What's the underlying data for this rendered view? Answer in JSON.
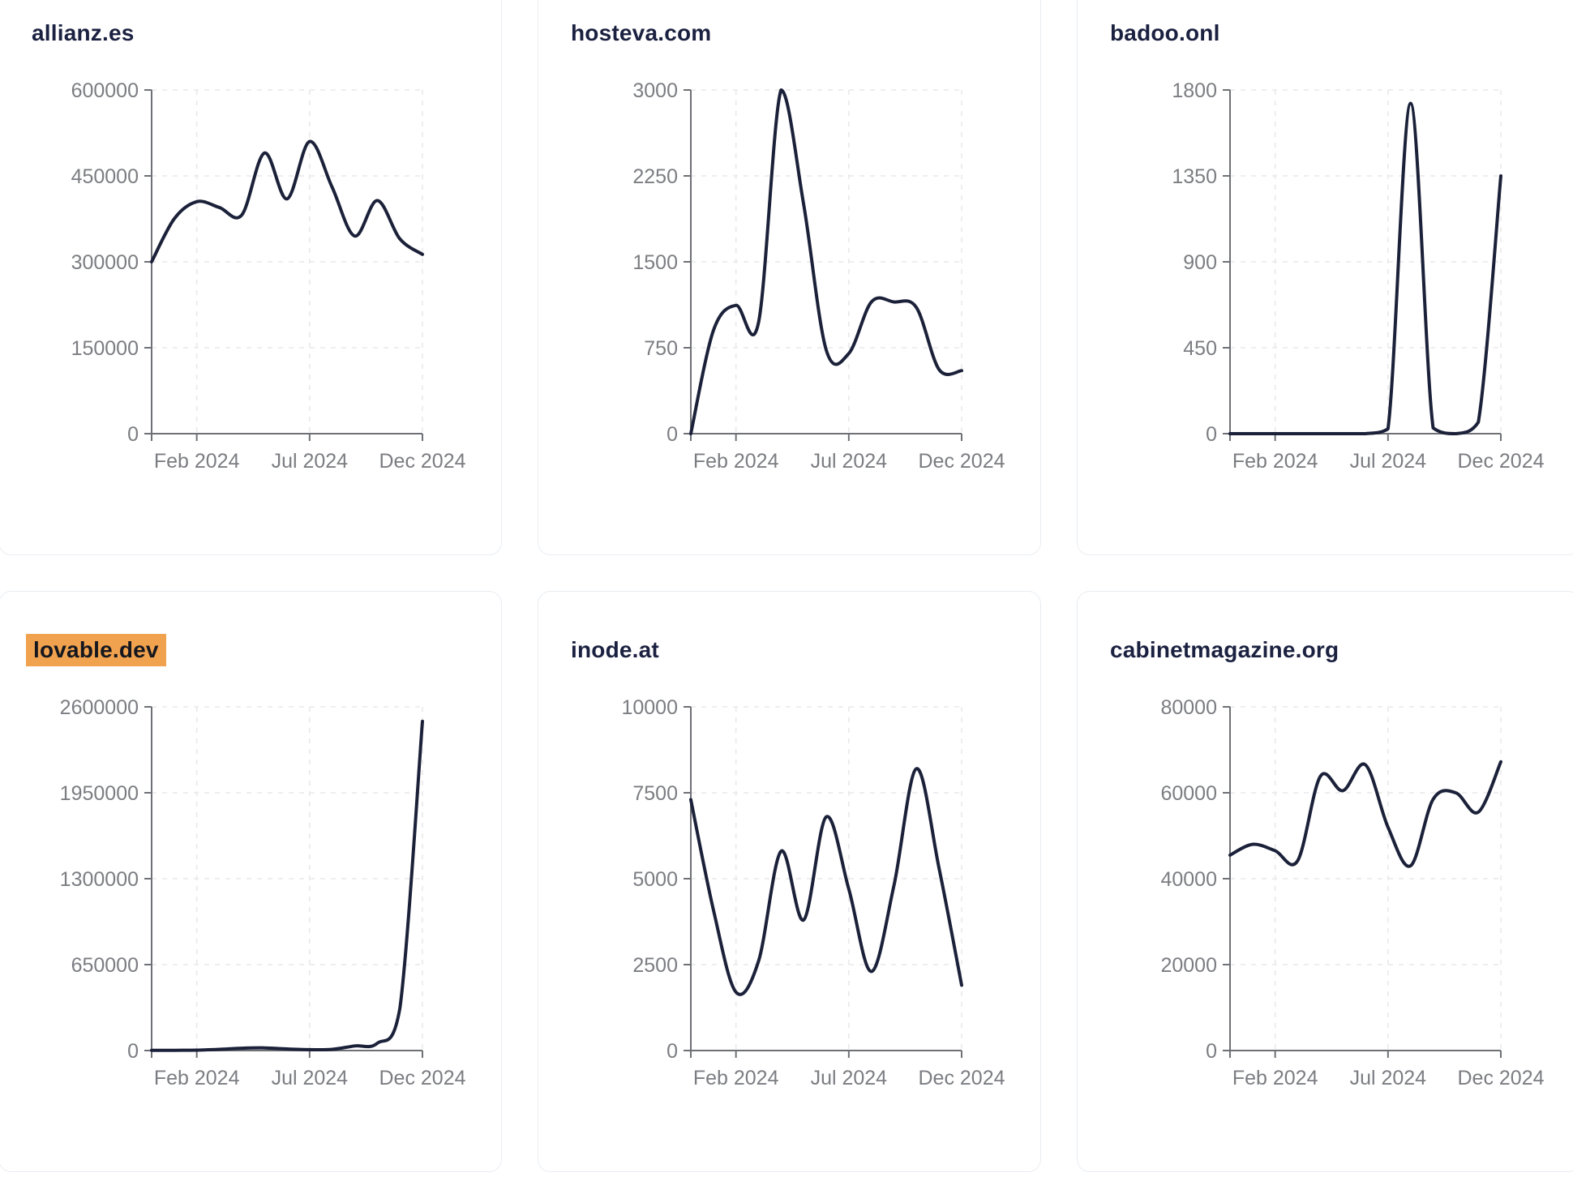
{
  "page": {
    "background_color": "#ffffff"
  },
  "style": {
    "card_border_color": "#e9edf2",
    "card_background": "#ffffff",
    "line_color": "#1b2139",
    "axis_color": "#6e7076",
    "tick_label_color": "#7b7d82",
    "grid_color": "#e9e9eb",
    "title_color": "#1b2140",
    "highlight_color": "#f0a24e"
  },
  "layout_hints": {
    "grid": "dashed",
    "legend": "none",
    "x_points": "13 monthly values per chart; x ticks at month indices 2, 7, 12"
  },
  "chart_data": [
    {
      "type": "line",
      "title": "allianz.es",
      "title_highlight": false,
      "x_tick_labels": [
        "Feb 2024",
        "Jul 2024",
        "Dec 2024"
      ],
      "x_tick_month_index": [
        2,
        7,
        12
      ],
      "y_ticks": [
        0,
        150000,
        300000,
        450000,
        600000
      ],
      "ylim": [
        0,
        600000
      ],
      "values": [
        300000,
        375000,
        405000,
        395000,
        382000,
        490000,
        410000,
        510000,
        430000,
        345000,
        407000,
        340000,
        313000
      ]
    },
    {
      "type": "line",
      "title": "hosteva.com",
      "title_highlight": false,
      "x_tick_labels": [
        "Feb 2024",
        "Jul 2024",
        "Dec 2024"
      ],
      "x_tick_month_index": [
        2,
        7,
        12
      ],
      "y_ticks": [
        0,
        750,
        1500,
        2250,
        3000
      ],
      "ylim": [
        0,
        3000
      ],
      "values": [
        0,
        900,
        1120,
        970,
        3000,
        2000,
        730,
        700,
        1150,
        1150,
        1100,
        560,
        550
      ]
    },
    {
      "type": "line",
      "title": "badoo.onl",
      "title_highlight": false,
      "x_tick_labels": [
        "Feb 2024",
        "Jul 2024",
        "Dec 2024"
      ],
      "x_tick_month_index": [
        2,
        7,
        12
      ],
      "y_ticks": [
        0,
        450,
        900,
        1350,
        1800
      ],
      "ylim": [
        0,
        1800
      ],
      "values": [
        0,
        0,
        0,
        0,
        0,
        0,
        0,
        25,
        1730,
        30,
        0,
        60,
        1350
      ]
    },
    {
      "type": "line",
      "title": "lovable.dev",
      "title_highlight": true,
      "x_tick_labels": [
        "Feb 2024",
        "Jul 2024",
        "Dec 2024"
      ],
      "x_tick_month_index": [
        2,
        7,
        12
      ],
      "y_ticks": [
        0,
        650000,
        1300000,
        1950000,
        2600000
      ],
      "ylim": [
        0,
        2600000
      ],
      "values": [
        2000,
        2000,
        3000,
        9000,
        18000,
        20000,
        12000,
        7000,
        9000,
        35000,
        55000,
        320000,
        2490000
      ]
    },
    {
      "type": "line",
      "title": "inode.at",
      "title_highlight": false,
      "x_tick_labels": [
        "Feb 2024",
        "Jul 2024",
        "Dec 2024"
      ],
      "x_tick_month_index": [
        2,
        7,
        12
      ],
      "y_ticks": [
        0,
        2500,
        5000,
        7500,
        10000
      ],
      "ylim": [
        0,
        10000
      ],
      "values": [
        7300,
        4100,
        1700,
        2600,
        5800,
        3800,
        6800,
        4700,
        2300,
        4800,
        8200,
        5300,
        1900
      ]
    },
    {
      "type": "line",
      "title": "cabinetmagazine.org",
      "title_highlight": false,
      "x_tick_labels": [
        "Feb 2024",
        "Jul 2024",
        "Dec 2024"
      ],
      "x_tick_month_index": [
        2,
        7,
        12
      ],
      "y_ticks": [
        0,
        20000,
        40000,
        60000,
        80000
      ],
      "ylim": [
        0,
        80000
      ],
      "values": [
        45500,
        48000,
        46500,
        44200,
        63800,
        60500,
        66500,
        52000,
        43000,
        58500,
        60000,
        55500,
        67200
      ]
    }
  ]
}
